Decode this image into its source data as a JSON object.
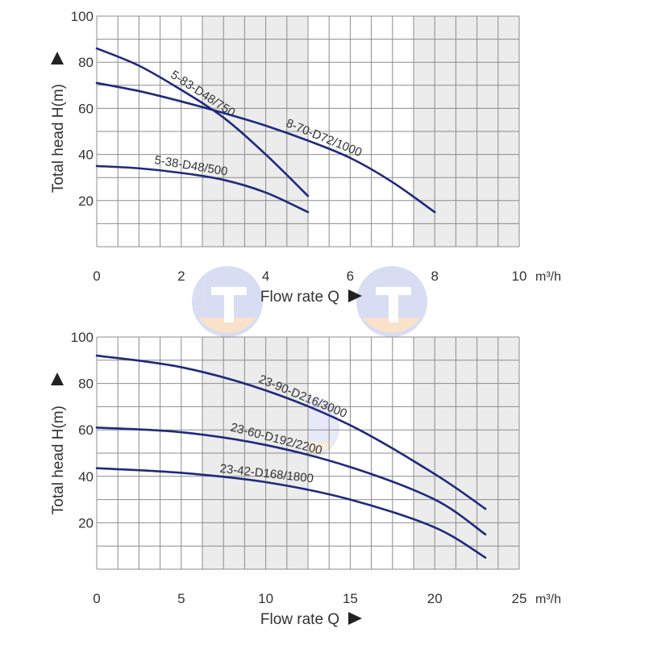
{
  "colors": {
    "grid": "#8c8c8c",
    "shade": "#ececec",
    "curve": "#1e2a7c",
    "text": "#333333",
    "logo_blue": "#b9c2ea",
    "logo_orange": "#f6c99d"
  },
  "chart_data": [
    {
      "type": "line",
      "title": "",
      "xlabel": "Flow rate Q",
      "ylabel": "Total head H(m)",
      "x_unit": "m³/h",
      "xlim": [
        0,
        10
      ],
      "ylim": [
        0,
        100
      ],
      "x_ticks": [
        0,
        2,
        4,
        6,
        8,
        10
      ],
      "y_ticks": [
        20,
        40,
        60,
        80,
        100
      ],
      "grid": true,
      "shaded_x_ranges": [
        [
          2.5,
          5
        ],
        [
          7.5,
          10
        ]
      ],
      "series": [
        {
          "name": "5-83-D48/750",
          "x": [
            0,
            1,
            2,
            3,
            4,
            5
          ],
          "y": [
            86,
            78.5,
            68,
            56,
            40,
            22
          ]
        },
        {
          "name": "8-70-D72/1000",
          "x": [
            0,
            1,
            2,
            3,
            4,
            5,
            6,
            7,
            8
          ],
          "y": [
            71,
            67.5,
            63,
            58,
            52.5,
            46,
            38.5,
            28,
            15
          ]
        },
        {
          "name": "5-38-D48/500",
          "x": [
            0,
            1,
            2,
            3,
            4,
            5
          ],
          "y": [
            35,
            34,
            32,
            29,
            23.5,
            15
          ]
        }
      ]
    },
    {
      "type": "line",
      "title": "",
      "xlabel": "Flow rate Q",
      "ylabel": "Total head H(m)",
      "x_unit": "m³/h",
      "xlim": [
        0,
        25
      ],
      "ylim": [
        0,
        100
      ],
      "x_ticks": [
        0,
        5,
        10,
        15,
        20,
        25
      ],
      "y_ticks": [
        20,
        40,
        60,
        80,
        100
      ],
      "grid": true,
      "shaded_x_ranges": [
        [
          6.25,
          12.5
        ],
        [
          18.75,
          25
        ]
      ],
      "series": [
        {
          "name": "23-90-D216/3000",
          "x": [
            0,
            5,
            10,
            15,
            20,
            23
          ],
          "y": [
            92,
            87,
            77,
            62,
            41,
            26
          ]
        },
        {
          "name": "23-60-D192/2200",
          "x": [
            0,
            5,
            10,
            15,
            20,
            23
          ],
          "y": [
            61,
            59,
            53.5,
            44,
            30,
            15
          ]
        },
        {
          "name": "23-42-D168/1800",
          "x": [
            0,
            5,
            10,
            15,
            20,
            23
          ],
          "y": [
            43.5,
            41.5,
            37.5,
            30,
            18,
            5
          ]
        }
      ]
    }
  ]
}
